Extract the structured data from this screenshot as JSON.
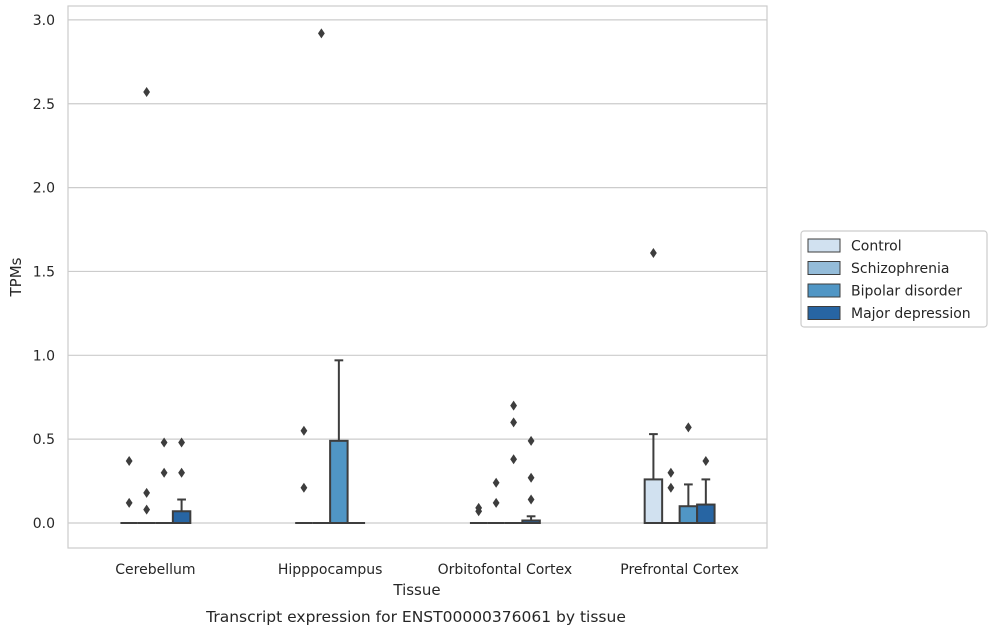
{
  "caption": "Transcript expression for ENST00000376061 by tissue",
  "colors": {
    "Control": "#d1e1f0",
    "Schizophrenia": "#94bcd9",
    "Bipolar disorder": "#5096c5",
    "Major depression": "#2765a3",
    "edge": "#3d3d3d",
    "grid": "#cccccc",
    "frame": "#cccccc"
  },
  "chart_data": {
    "type": "box",
    "xlabel": "Tissue",
    "ylabel": "TPMs",
    "ylim": [
      -0.14,
      3.07
    ],
    "yticks": [
      0.0,
      0.5,
      1.0,
      1.5,
      2.0,
      2.5,
      3.0
    ],
    "ytick_labels": [
      "0.0",
      "0.5",
      "1.0",
      "1.5",
      "2.0",
      "2.5",
      "3.0"
    ],
    "grid": "horizontal",
    "legend_position": "right",
    "categories": [
      "Cerebellum",
      "Hipppocampus",
      "Orbitofontal Cortex",
      "Prefrontal Cortex"
    ],
    "series": [
      {
        "name": "Control",
        "boxes": [
          {
            "q1": 0,
            "median": 0,
            "q3": 0,
            "whislo": 0,
            "whishi": 0,
            "fliers": [
              0.12,
              0.37
            ]
          },
          {
            "q1": 0,
            "median": 0,
            "q3": 0,
            "whislo": 0,
            "whishi": 0,
            "fliers": [
              0.21,
              0.55
            ]
          },
          {
            "q1": 0,
            "median": 0,
            "q3": 0,
            "whislo": 0,
            "whishi": 0,
            "fliers": [
              0.07,
              0.09
            ]
          },
          {
            "q1": 0,
            "median": 0,
            "q3": 0.26,
            "whislo": 0,
            "whishi": 0.53,
            "fliers": [
              1.61
            ]
          }
        ]
      },
      {
        "name": "Schizophrenia",
        "boxes": [
          {
            "q1": 0,
            "median": 0,
            "q3": 0,
            "whislo": 0,
            "whishi": 0,
            "fliers": [
              0.08,
              0.18,
              2.57
            ]
          },
          {
            "q1": 0,
            "median": 0,
            "q3": 0,
            "whislo": 0,
            "whishi": 0,
            "fliers": [
              2.92
            ]
          },
          {
            "q1": 0,
            "median": 0,
            "q3": 0,
            "whislo": 0,
            "whishi": 0,
            "fliers": [
              0.12,
              0.24
            ]
          },
          {
            "q1": 0,
            "median": 0,
            "q3": 0,
            "whislo": 0,
            "whishi": 0,
            "fliers": [
              0.21,
              0.3
            ]
          }
        ]
      },
      {
        "name": "Bipolar disorder",
        "boxes": [
          {
            "q1": 0,
            "median": 0,
            "q3": 0,
            "whislo": 0,
            "whishi": 0,
            "fliers": [
              0.3,
              0.48
            ]
          },
          {
            "q1": 0,
            "median": 0,
            "q3": 0.49,
            "whislo": 0,
            "whishi": 0.97,
            "fliers": []
          },
          {
            "q1": 0,
            "median": 0,
            "q3": 0,
            "whislo": 0,
            "whishi": 0,
            "fliers": [
              0.38,
              0.6,
              0.7
            ]
          },
          {
            "q1": 0,
            "median": 0,
            "q3": 0.1,
            "whislo": 0,
            "whishi": 0.23,
            "fliers": [
              0.57
            ]
          }
        ]
      },
      {
        "name": "Major depression",
        "boxes": [
          {
            "q1": 0,
            "median": 0,
            "q3": 0.07,
            "whislo": 0,
            "whishi": 0.14,
            "fliers": [
              0.3,
              0.48
            ]
          },
          {
            "q1": 0,
            "median": 0,
            "q3": 0,
            "whislo": 0,
            "whishi": 0,
            "fliers": []
          },
          {
            "q1": 0,
            "median": 0,
            "q3": 0.015,
            "whislo": 0,
            "whishi": 0.04,
            "fliers": [
              0.14,
              0.27,
              0.49
            ]
          },
          {
            "q1": 0,
            "median": 0,
            "q3": 0.11,
            "whislo": 0,
            "whishi": 0.26,
            "fliers": [
              0.37
            ]
          }
        ]
      }
    ]
  }
}
